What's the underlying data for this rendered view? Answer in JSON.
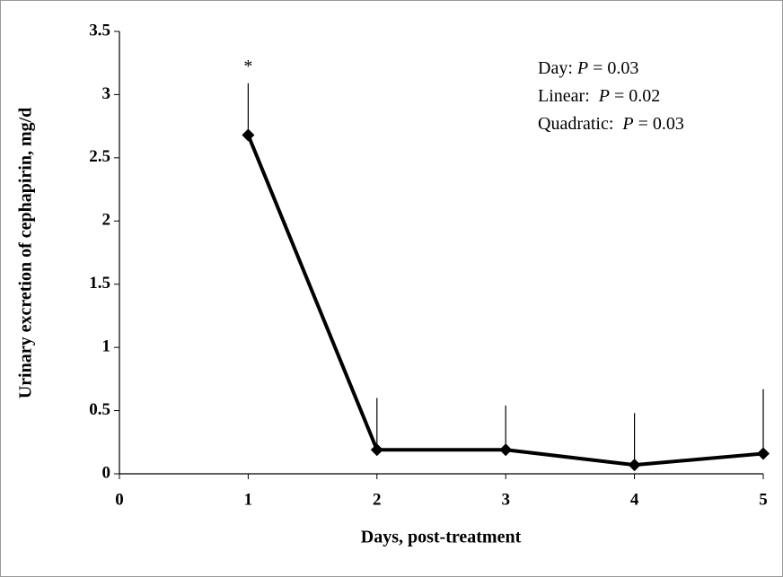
{
  "chart_data": {
    "type": "line",
    "x": [
      1,
      2,
      3,
      4,
      5
    ],
    "series": [
      {
        "color": "#000000",
        "values": [
          2.68,
          0.19,
          0.19,
          0.07,
          0.16
        ],
        "errors": [
          0.41,
          0.41,
          0.35,
          0.41,
          0.51
        ]
      }
    ],
    "xlabel": "Days, post-treatment",
    "ylabel": "Urinary  excretion of cephapirin,  mg/d",
    "xlim": [
      0,
      5
    ],
    "xticks": [
      0,
      1,
      2,
      3,
      4,
      5
    ],
    "ylim": [
      0,
      3.5
    ],
    "yticks": [
      0,
      0.5,
      1,
      1.5,
      2,
      2.5,
      3,
      3.5
    ],
    "annotations": [
      {
        "text": "*",
        "x": 1
      },
      {
        "parts": [
          "Day: ",
          "P",
          " = 0.03"
        ]
      },
      {
        "parts": [
          "Linear:  ",
          "P",
          " = 0.02"
        ]
      },
      {
        "parts": [
          "Quadratic:  ",
          "P",
          " = 0.03"
        ]
      }
    ],
    "grid": false
  }
}
